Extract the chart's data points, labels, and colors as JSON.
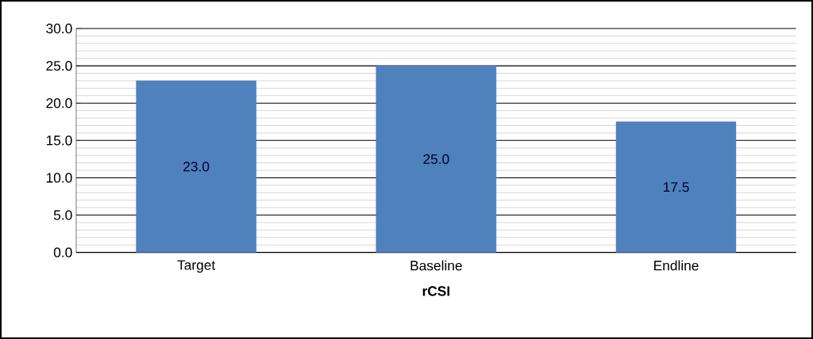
{
  "chart_data": {
    "type": "bar",
    "xlabel": "rCSI",
    "categories": [
      "Target",
      "Baseline",
      "Endline"
    ],
    "values": [
      23.0,
      25.0,
      17.5
    ],
    "value_labels": [
      "23.0",
      "25.0",
      "17.5"
    ],
    "color": "#4f81bd",
    "ylim": [
      0,
      30
    ],
    "yticks": [
      {
        "value": 0,
        "label": "0.0"
      },
      {
        "value": 5,
        "label": "5.0"
      },
      {
        "value": 10,
        "label": "10.0"
      },
      {
        "value": 15,
        "label": "15.0"
      },
      {
        "value": 20,
        "label": "20.0"
      },
      {
        "value": 25,
        "label": "25.0"
      },
      {
        "value": 30,
        "label": "30.0"
      }
    ],
    "grid": true
  }
}
